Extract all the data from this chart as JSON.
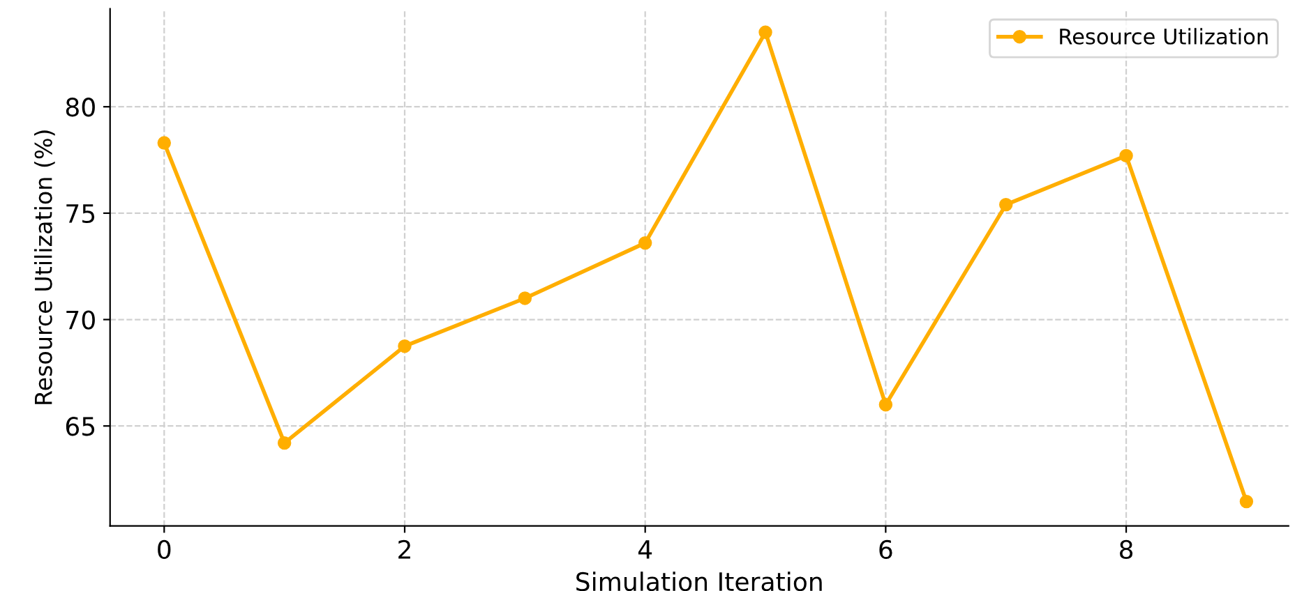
{
  "chart_data": {
    "type": "line",
    "xlabel": "Simulation Iteration",
    "ylabel": "Resource Utilization (%)",
    "x": [
      0,
      1,
      2,
      3,
      4,
      5,
      6,
      7,
      8,
      9
    ],
    "series": [
      {
        "name": "Resource Utilization",
        "color": "#ffae00",
        "values": [
          78.3,
          64.2,
          68.75,
          71.0,
          73.6,
          83.5,
          66.0,
          75.4,
          77.7,
          61.45
        ]
      }
    ],
    "xlim": [
      -0.45,
      9.35
    ],
    "ylim": [
      60.3,
      84.6
    ],
    "xticks": [
      0,
      2,
      4,
      6,
      8
    ],
    "yticks": [
      65,
      70,
      75,
      80
    ],
    "grid": true,
    "legend": "top right",
    "marker": "circle",
    "line_style": "solid"
  }
}
